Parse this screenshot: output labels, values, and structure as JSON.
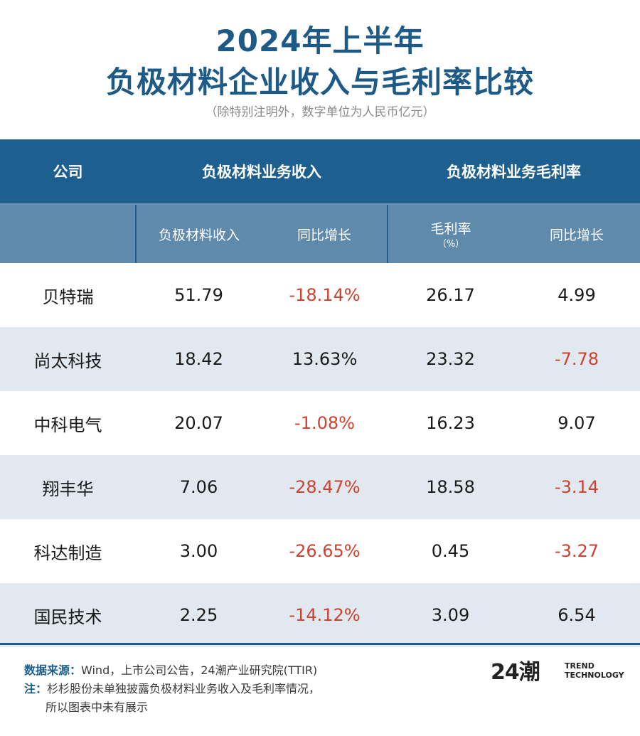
{
  "title": {
    "line1": "2024年上半年",
    "line2": "负极材料企业收入与毛利率比较",
    "subtitle": "（除特别注明外，数字单位为人民币亿元）"
  },
  "table": {
    "group_headers": {
      "company": "公司",
      "revenue_group": "负极材料业务收入",
      "margin_group": "负极材料业务毛利率"
    },
    "sub_headers": {
      "revenue": "负极材料收入",
      "revenue_yoy": "同比增长",
      "margin": "毛利率",
      "margin_unit": "（%）",
      "margin_yoy": "同比增长"
    },
    "rows": [
      {
        "company": "贝特瑞",
        "revenue": "51.79",
        "revenue_yoy": "-18.14%",
        "margin": "26.17",
        "margin_yoy": "4.99"
      },
      {
        "company": "尚太科技",
        "revenue": "18.42",
        "revenue_yoy": "13.63%",
        "margin": "23.32",
        "margin_yoy": "-7.78"
      },
      {
        "company": "中科电气",
        "revenue": "20.07",
        "revenue_yoy": "-1.08%",
        "margin": "16.23",
        "margin_yoy": "9.07"
      },
      {
        "company": "翔丰华",
        "revenue": "7.06",
        "revenue_yoy": "-28.47%",
        "margin": "18.58",
        "margin_yoy": "-3.14"
      },
      {
        "company": "科达制造",
        "revenue": "3.00",
        "revenue_yoy": "-26.65%",
        "margin": "0.45",
        "margin_yoy": "-3.27"
      },
      {
        "company": "国民技术",
        "revenue": "2.25",
        "revenue_yoy": "-14.12%",
        "margin": "3.09",
        "margin_yoy": "6.54"
      }
    ]
  },
  "footer": {
    "source_label": "数据来源：",
    "source_text": "Wind，上市公司公告，24潮产业研究院(TTIR)",
    "note_label": "注：",
    "note_line1": "杉杉股份未单独披露负极材料业务收入及毛利率情况，",
    "note_line2": "所以图表中未有展示"
  },
  "logo": {
    "mark": "24潮",
    "text_line1": "TREND",
    "text_line2": "TECHNOLOGY"
  },
  "colors": {
    "brand": "#1d5f8e",
    "subheader": "#5f8aac",
    "negative": "#d0412e",
    "row_alt": "#e2e8ef"
  },
  "chart_data": {
    "type": "table",
    "title": "2024年上半年 负极材料企业收入与毛利率比较",
    "subtitle": "（除特别注明外，数字单位为人民币亿元）",
    "columns": [
      "公司",
      "负极材料收入",
      "同比增长",
      "毛利率（%）",
      "同比增长"
    ],
    "categories": [
      "贝特瑞",
      "尚太科技",
      "中科电气",
      "翔丰华",
      "科达制造",
      "国民技术"
    ],
    "series": [
      {
        "name": "负极材料收入",
        "values": [
          51.79,
          18.42,
          20.07,
          7.06,
          3.0,
          2.25
        ]
      },
      {
        "name": "同比增长",
        "values": [
          -18.14,
          13.63,
          -1.08,
          -28.47,
          -26.65,
          -14.12
        ]
      },
      {
        "name": "毛利率（%）",
        "values": [
          26.17,
          23.32,
          16.23,
          18.58,
          0.45,
          3.09
        ]
      },
      {
        "name": "同比增长",
        "values": [
          4.99,
          -7.78,
          9.07,
          -3.14,
          -3.27,
          6.54
        ]
      }
    ]
  }
}
